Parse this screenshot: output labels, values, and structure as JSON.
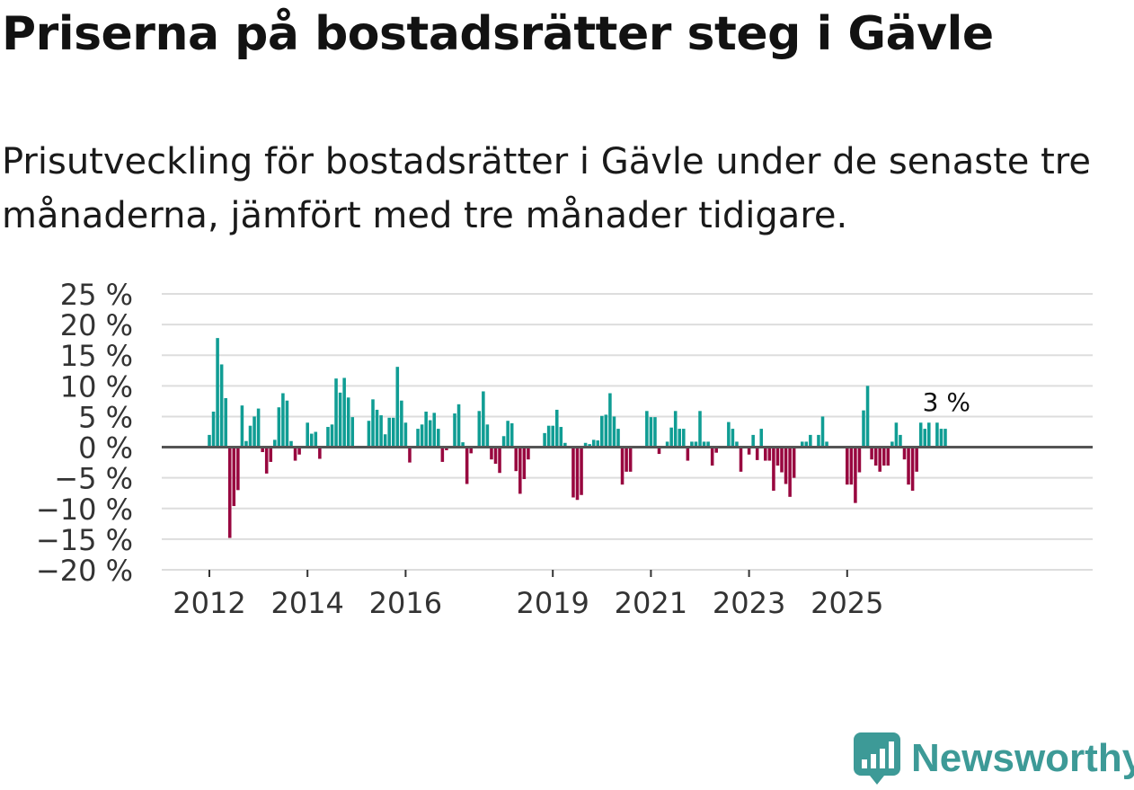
{
  "title": "Priserna på bostadsrätter steg i Gävle",
  "subtitle": "Prisutveckling för bostadsrätter i Gävle under de senaste tre månaderna, jämfört med tre månader tidigare.",
  "brand": {
    "name": "Newsworthy",
    "icon": "newsworthy-logo-icon",
    "color": "#3d9a97"
  },
  "colors": {
    "positive": "#109d94",
    "negative": "#98073f",
    "grid": "#dddddd",
    "zero_line": "#555555"
  },
  "chart_data": {
    "type": "bar",
    "title": "Priserna på bostadsrätter steg i Gävle",
    "xlabel": "",
    "ylabel": "",
    "unit": "%",
    "ylim": [
      -20,
      25
    ],
    "yticks": [
      25,
      20,
      15,
      10,
      5,
      0,
      -5,
      -10,
      -15,
      -20
    ],
    "ytick_labels": [
      "25 %",
      "20 %",
      "15 %",
      "10 %",
      "5 %",
      "0 %",
      "−5 %",
      "−10 %",
      "−15 %",
      "−20 %"
    ],
    "xticks": [
      {
        "label": "2012",
        "year": 2012
      },
      {
        "label": "2014",
        "year": 2014
      },
      {
        "label": "2016",
        "year": 2016
      },
      {
        "label": "2019",
        "year": 2019
      },
      {
        "label": "2021",
        "year": 2021
      },
      {
        "label": "2023",
        "year": 2023
      },
      {
        "label": "2025",
        "year": 2025
      }
    ],
    "start": "2012-01",
    "end": "2025-09",
    "last_value_label": "3 %",
    "values": [
      2,
      5.8,
      17.8,
      13.5,
      8,
      -14.8,
      -9.6,
      -7,
      6.8,
      1,
      3.5,
      5,
      6.3,
      -0.8,
      -4.3,
      -2.4,
      1.2,
      6.5,
      8.8,
      7.6,
      1,
      -2.2,
      -1.2,
      0.2,
      4,
      2.2,
      2.5,
      -1.9,
      0,
      3.3,
      3.7,
      11.2,
      8.9,
      11.3,
      8.1,
      4.9,
      0,
      0,
      0,
      4.3,
      7.8,
      6.1,
      5.2,
      2.1,
      4.8,
      4.8,
      13.1,
      7.6,
      4,
      -2.5,
      0,
      3,
      3.7,
      5.8,
      4.4,
      5.6,
      3,
      -2.4,
      -0.5,
      0,
      5.5,
      7,
      0.8,
      -6,
      -1,
      0,
      5.9,
      9.1,
      3.7,
      -2,
      -2.7,
      -4.2,
      1.8,
      4.3,
      3.9,
      -3.9,
      -7.6,
      -5.2,
      -2,
      0,
      0,
      0,
      2.3,
      3.5,
      3.5,
      6.1,
      3.3,
      0.7,
      0,
      -8.2,
      -8.6,
      -7.8,
      0.7,
      0.5,
      1.2,
      1.1,
      5.1,
      5.3,
      8.8,
      5,
      3,
      -6.1,
      -4,
      -4,
      0,
      0,
      0,
      5.9,
      4.9,
      4.9,
      -1.1,
      0,
      0.9,
      3.2,
      5.9,
      3,
      3,
      -2.2,
      0.9,
      0.9,
      5.9,
      0.9,
      0.9,
      -3,
      -0.9,
      0,
      0,
      4.1,
      3,
      0.9,
      -4,
      0,
      -1.2,
      2,
      -2.1,
      3,
      -2.2,
      -2.2,
      -7.1,
      -3,
      -4.1,
      -6,
      -8.1,
      -5,
      0,
      0.9,
      0.9,
      2,
      0,
      2,
      5,
      0.9,
      0,
      0,
      0,
      0,
      -6.1,
      -6.1,
      -9.1,
      -4.1,
      6,
      10,
      -2,
      -3,
      -4,
      -3,
      -3,
      0.9,
      4,
      2,
      -2,
      -6.1,
      -7.1,
      -4,
      4,
      3,
      4,
      0,
      4,
      3,
      3
    ]
  }
}
